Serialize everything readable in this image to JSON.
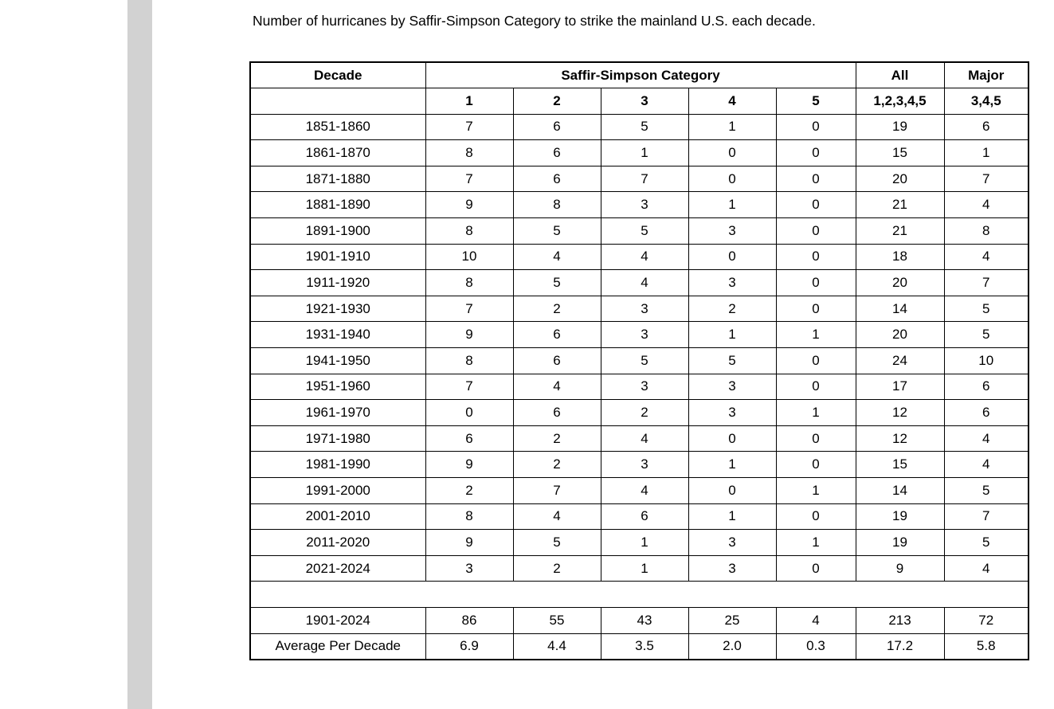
{
  "page": {
    "caption": "Number of hurricanes by Saffir-Simpson Category to strike the mainland U.S. each decade."
  },
  "table": {
    "header": {
      "decade": "Decade",
      "category_group": "Saffir-Simpson Category",
      "all": "All",
      "major": "Major",
      "category_cols": [
        "1",
        "2",
        "3",
        "4",
        "5"
      ],
      "all_sub": "1,2,3,4,5",
      "major_sub": "3,4,5"
    },
    "rows": [
      {
        "decade": "1851-1860",
        "values": [
          "7",
          "6",
          "5",
          "1",
          "0",
          "19",
          "6"
        ]
      },
      {
        "decade": "1861-1870",
        "values": [
          "8",
          "6",
          "1",
          "0",
          "0",
          "15",
          "1"
        ]
      },
      {
        "decade": "1871-1880",
        "values": [
          "7",
          "6",
          "7",
          "0",
          "0",
          "20",
          "7"
        ]
      },
      {
        "decade": "1881-1890",
        "values": [
          "9",
          "8",
          "3",
          "1",
          "0",
          "21",
          "4"
        ]
      },
      {
        "decade": "1891-1900",
        "values": [
          "8",
          "5",
          "5",
          "3",
          "0",
          "21",
          "8"
        ]
      },
      {
        "decade": "1901-1910",
        "values": [
          "10",
          "4",
          "4",
          "0",
          "0",
          "18",
          "4"
        ]
      },
      {
        "decade": "1911-1920",
        "values": [
          "8",
          "5",
          "4",
          "3",
          "0",
          "20",
          "7"
        ]
      },
      {
        "decade": "1921-1930",
        "values": [
          "7",
          "2",
          "3",
          "2",
          "0",
          "14",
          "5"
        ]
      },
      {
        "decade": "1931-1940",
        "values": [
          "9",
          "6",
          "3",
          "1",
          "1",
          "20",
          "5"
        ]
      },
      {
        "decade": "1941-1950",
        "values": [
          "8",
          "6",
          "5",
          "5",
          "0",
          "24",
          "10"
        ]
      },
      {
        "decade": "1951-1960",
        "values": [
          "7",
          "4",
          "3",
          "3",
          "0",
          "17",
          "6"
        ]
      },
      {
        "decade": "1961-1970",
        "values": [
          "0",
          "6",
          "2",
          "3",
          "1",
          "12",
          "6"
        ]
      },
      {
        "decade": "1971-1980",
        "values": [
          "6",
          "2",
          "4",
          "0",
          "0",
          "12",
          "4"
        ]
      },
      {
        "decade": "1981-1990",
        "values": [
          "9",
          "2",
          "3",
          "1",
          "0",
          "15",
          "4"
        ]
      },
      {
        "decade": "1991-2000",
        "values": [
          "2",
          "7",
          "4",
          "0",
          "1",
          "14",
          "5"
        ]
      },
      {
        "decade": "2001-2010",
        "values": [
          "8",
          "4",
          "6",
          "1",
          "0",
          "19",
          "7"
        ]
      },
      {
        "decade": "2011-2020",
        "values": [
          "9",
          "5",
          "1",
          "3",
          "1",
          "19",
          "5"
        ]
      },
      {
        "decade": "2021-2024",
        "values": [
          "3",
          "2",
          "1",
          "3",
          "0",
          "9",
          "4"
        ]
      }
    ],
    "summary_rows": [
      {
        "decade": "1901-2024",
        "values": [
          "86",
          "55",
          "43",
          "25",
          "4",
          "213",
          "72"
        ]
      },
      {
        "decade": "Average Per Decade",
        "values": [
          "6.9",
          "4.4",
          "3.5",
          "2.0",
          "0.3",
          "17.2",
          "5.8"
        ]
      }
    ]
  },
  "chart_data": {
    "type": "table",
    "title": "Number of hurricanes by Saffir-Simpson Category to strike the mainland U.S. each decade.",
    "columns": [
      "Decade",
      "Category 1",
      "Category 2",
      "Category 3",
      "Category 4",
      "Category 5",
      "All 1,2,3,4,5",
      "Major 3,4,5"
    ],
    "rows": [
      [
        "1851-1860",
        7,
        6,
        5,
        1,
        0,
        19,
        6
      ],
      [
        "1861-1870",
        8,
        6,
        1,
        0,
        0,
        15,
        1
      ],
      [
        "1871-1880",
        7,
        6,
        7,
        0,
        0,
        20,
        7
      ],
      [
        "1881-1890",
        9,
        8,
        3,
        1,
        0,
        21,
        4
      ],
      [
        "1891-1900",
        8,
        5,
        5,
        3,
        0,
        21,
        8
      ],
      [
        "1901-1910",
        10,
        4,
        4,
        0,
        0,
        18,
        4
      ],
      [
        "1911-1920",
        8,
        5,
        4,
        3,
        0,
        20,
        7
      ],
      [
        "1921-1930",
        7,
        2,
        3,
        2,
        0,
        14,
        5
      ],
      [
        "1931-1940",
        9,
        6,
        3,
        1,
        1,
        20,
        5
      ],
      [
        "1941-1950",
        8,
        6,
        5,
        5,
        0,
        24,
        10
      ],
      [
        "1951-1960",
        7,
        4,
        3,
        3,
        0,
        17,
        6
      ],
      [
        "1961-1970",
        0,
        6,
        2,
        3,
        1,
        12,
        6
      ],
      [
        "1971-1980",
        6,
        2,
        4,
        0,
        0,
        12,
        4
      ],
      [
        "1981-1990",
        9,
        2,
        3,
        1,
        0,
        15,
        4
      ],
      [
        "1991-2000",
        2,
        7,
        4,
        0,
        1,
        14,
        5
      ],
      [
        "2001-2010",
        8,
        4,
        6,
        1,
        0,
        19,
        7
      ],
      [
        "2011-2020",
        9,
        5,
        1,
        3,
        1,
        19,
        5
      ],
      [
        "2021-2024",
        3,
        2,
        1,
        3,
        0,
        9,
        4
      ],
      [
        "1901-2024",
        86,
        55,
        43,
        25,
        4,
        213,
        72
      ],
      [
        "Average Per Decade",
        6.9,
        4.4,
        3.5,
        2.0,
        0.3,
        17.2,
        5.8
      ]
    ]
  },
  "colors": {
    "background": "#ffffff",
    "grid": "#000000",
    "gutter": "#d2d2d2"
  }
}
